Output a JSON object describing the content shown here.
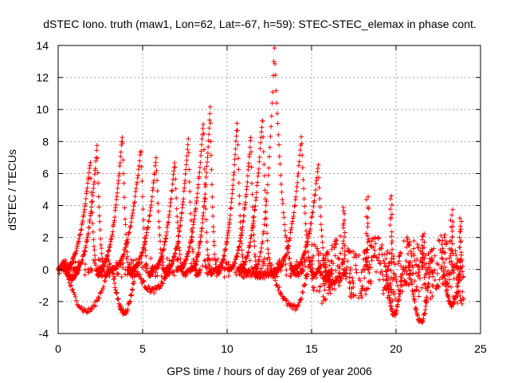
{
  "chart_data": {
    "type": "scatter",
    "title": "dSTEC Iono. truth (maw1, Lon=62, Lat=-67, h=59): STEC-STEC_elemax in phase cont.",
    "xlabel": "GPS time / hours of day 269 of year 2006",
    "ylabel": "dSTEC  / TECUs",
    "xlim": [
      0,
      25
    ],
    "ylim": [
      -4,
      14
    ],
    "xticks": [
      0,
      5,
      10,
      15,
      20,
      25
    ],
    "yticks": [
      -4,
      -2,
      0,
      2,
      4,
      6,
      8,
      10,
      12,
      14
    ],
    "grid": true,
    "marker": "+",
    "series_color": "#ff0000",
    "arcs": [
      {
        "start": 0.0,
        "peak_time": 0.3,
        "peak": 0.5,
        "end": 1.2
      },
      {
        "start": 0.2,
        "peak_time": 1.9,
        "peak": 6.8,
        "end": 2.6
      },
      {
        "start": 0.9,
        "peak_time": 2.3,
        "peak": 7.7,
        "end": 3.0
      },
      {
        "start": 2.3,
        "peak_time": 3.8,
        "peak": 8.5,
        "end": 4.5
      },
      {
        "start": 3.0,
        "peak_time": 4.9,
        "peak": 7.6,
        "end": 5.6
      },
      {
        "start": 4.2,
        "peak_time": 5.8,
        "peak": 7.0,
        "end": 6.6
      },
      {
        "start": 5.5,
        "peak_time": 6.9,
        "peak": 6.8,
        "end": 7.7
      },
      {
        "start": 6.3,
        "peak_time": 7.7,
        "peak": 8.1,
        "end": 8.4
      },
      {
        "start": 7.0,
        "peak_time": 8.6,
        "peak": 9.3,
        "end": 9.2
      },
      {
        "start": 7.8,
        "peak_time": 9.0,
        "peak": 10.2,
        "end": 9.6
      },
      {
        "start": 9.3,
        "peak_time": 10.6,
        "peak": 9.3,
        "end": 11.3
      },
      {
        "start": 10.0,
        "peak_time": 11.4,
        "peak": 8.3,
        "end": 12.0
      },
      {
        "start": 10.6,
        "peak_time": 12.1,
        "peak": 9.7,
        "end": 12.9
      },
      {
        "start": 11.5,
        "peak_time": 12.8,
        "peak": 13.8,
        "end": 14.5
      },
      {
        "start": 12.8,
        "peak_time": 14.4,
        "peak": 8.4,
        "end": 15.4
      },
      {
        "start": 13.8,
        "peak_time": 15.4,
        "peak": 6.6,
        "end": 16.2
      }
    ],
    "dips": [
      {
        "start": 0.4,
        "trough_time": 1.7,
        "trough": -2.6,
        "end": 3.0
      },
      {
        "start": 3.2,
        "trough_time": 3.9,
        "trough": -2.7,
        "end": 4.6
      },
      {
        "start": 4.6,
        "trough_time": 5.6,
        "trough": -1.3,
        "end": 6.6
      },
      {
        "start": 10.8,
        "trough_time": 12.0,
        "trough": -0.4,
        "end": 13.0
      },
      {
        "start": 12.6,
        "trough_time": 14.0,
        "trough": -2.4,
        "end": 14.8
      },
      {
        "start": 15.4,
        "trough_time": 16.2,
        "trough": -0.8,
        "end": 17.1
      },
      {
        "start": 19.4,
        "trough_time": 19.9,
        "trough": -2.8,
        "end": 20.4
      },
      {
        "start": 20.8,
        "trough_time": 21.5,
        "trough": -3.3,
        "end": 22.0
      },
      {
        "start": 22.8,
        "trough_time": 23.3,
        "trough": -2.2,
        "end": 23.8
      }
    ],
    "noise_region": {
      "start": 15.0,
      "end": 24.0,
      "amplitude": 3.2,
      "peaks": [
        {
          "x": 16.9,
          "y": 3.8
        },
        {
          "x": 18.3,
          "y": 4.5
        },
        {
          "x": 19.7,
          "y": 4.7
        },
        {
          "x": 21.6,
          "y": 2.2
        },
        {
          "x": 23.3,
          "y": 3.6
        },
        {
          "x": 23.8,
          "y": 3.2
        }
      ]
    }
  }
}
